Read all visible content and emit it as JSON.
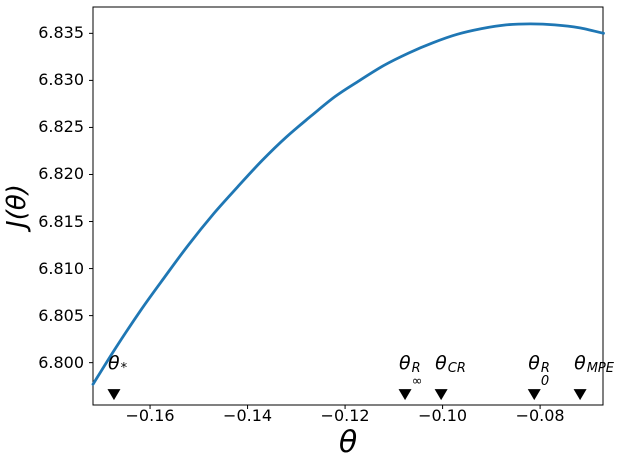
{
  "figure": {
    "background": "#ffffff",
    "spine_color": "#000000",
    "tick_color": "#000000",
    "text_color": "#000000"
  },
  "chart_data": {
    "type": "line",
    "title": "",
    "xlabel": "θ",
    "ylabel": "J(θ)",
    "xlim": [
      -0.1717,
      -0.0671
    ],
    "ylim": [
      6.7955,
      6.8378
    ],
    "grid": false,
    "legend": "none",
    "x_ticks": {
      "values": [
        -0.16,
        -0.14,
        -0.12,
        -0.1,
        -0.08
      ],
      "labels": [
        "−0.16",
        "−0.14",
        "−0.12",
        "−0.10",
        "−0.08"
      ]
    },
    "y_ticks": {
      "values": [
        6.8,
        6.805,
        6.81,
        6.815,
        6.82,
        6.825,
        6.83,
        6.835
      ],
      "labels": [
        "6.800",
        "6.805",
        "6.810",
        "6.815",
        "6.820",
        "6.825",
        "6.830",
        "6.835"
      ]
    },
    "series": [
      {
        "name": "objective-curve",
        "color": "#1f77b4",
        "line_width": 2.8,
        "x": [
          -0.1717,
          -0.167,
          -0.162,
          -0.157,
          -0.152,
          -0.147,
          -0.142,
          -0.137,
          -0.132,
          -0.127,
          -0.122,
          -0.117,
          -0.112,
          -0.107,
          -0.102,
          -0.097,
          -0.092,
          -0.087,
          -0.082,
          -0.077,
          -0.072,
          -0.067
        ],
        "y": [
          6.7977,
          6.8016,
          6.8055,
          6.8091,
          6.8126,
          6.8158,
          6.8187,
          6.8215,
          6.824,
          6.8262,
          6.8283,
          6.83,
          6.8316,
          6.8329,
          6.834,
          6.8349,
          6.8355,
          6.8359,
          6.836,
          6.8359,
          6.8356,
          6.835
        ]
      }
    ],
    "marker_style": {
      "shape": "triangle-down",
      "color": "#000000",
      "y_value": 6.7966
    },
    "annotations": [
      {
        "name": "theta-star",
        "base": "θ",
        "sup": "*",
        "sub": "",
        "x": -0.1674
      },
      {
        "name": "theta-R-infinity",
        "base": "θ",
        "sup": "R",
        "sub": "∞",
        "x": -0.1077
      },
      {
        "name": "theta-CR",
        "base": "θ",
        "sup": "CR",
        "sub": "",
        "x": -0.1003
      },
      {
        "name": "theta-R-0",
        "base": "θ",
        "sup": "R",
        "sub": "0",
        "x": -0.0812
      },
      {
        "name": "theta-MPE",
        "base": "θ",
        "sup": "MPE",
        "sub": "",
        "x": -0.0718
      }
    ]
  }
}
